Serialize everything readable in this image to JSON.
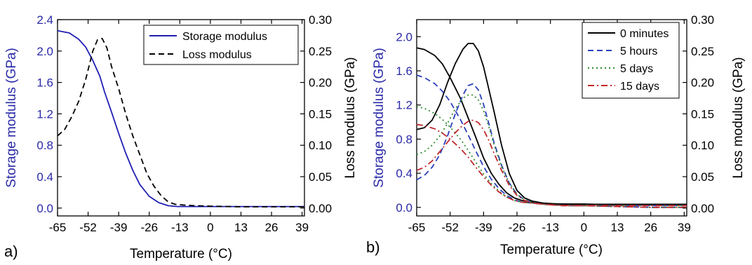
{
  "chart_data": [
    {
      "type": "line",
      "panel_label": "a)",
      "xlabel": "Temperature (°C)",
      "ylabel": "Storage modulus (GPa)",
      "ylabel_right": "Loss modulus (GPa)",
      "xlim": [
        -65,
        40
      ],
      "ylim": [
        -0.1,
        2.4
      ],
      "ylim_right": [
        -0.0125,
        0.3
      ],
      "xticks": [
        "-65",
        "-52",
        "-39",
        "-26",
        "-13",
        "0",
        "13",
        "26",
        "39"
      ],
      "yticks": [
        "0.0",
        "0.4",
        "0.8",
        "1.2",
        "1.6",
        "2.0",
        "2.4"
      ],
      "yticks_right": [
        "0.00",
        "0.05",
        "0.10",
        "0.15",
        "0.20",
        "0.25",
        "0.30"
      ],
      "legend_position": "top-right",
      "series": [
        {
          "name": "Storage modulus",
          "axis": "left",
          "color": "#1f1fb4",
          "style": "solid",
          "x": [
            -65,
            -60,
            -56,
            -53,
            -50,
            -47,
            -45,
            -42,
            -39,
            -36,
            -33,
            -30,
            -26,
            -22,
            -18,
            -14,
            -10,
            0,
            13,
            26,
            40
          ],
          "y": [
            2.26,
            2.23,
            2.15,
            2.05,
            1.88,
            1.68,
            1.48,
            1.22,
            0.95,
            0.7,
            0.48,
            0.3,
            0.15,
            0.07,
            0.03,
            0.02,
            0.02,
            0.02,
            0.02,
            0.02,
            0.02
          ]
        },
        {
          "name": "Loss modulus",
          "axis": "right",
          "color": "#000000",
          "style": "dashed",
          "x": [
            -65,
            -62,
            -59,
            -56,
            -53,
            -50,
            -48,
            -46,
            -44,
            -42,
            -39,
            -36,
            -33,
            -30,
            -27,
            -24,
            -21,
            -18,
            -15,
            -12,
            -8,
            0,
            13,
            26,
            40
          ],
          "y": [
            0.115,
            0.125,
            0.145,
            0.17,
            0.205,
            0.25,
            0.268,
            0.27,
            0.255,
            0.225,
            0.19,
            0.15,
            0.115,
            0.085,
            0.055,
            0.035,
            0.02,
            0.01,
            0.006,
            0.005,
            0.004,
            0.003,
            0.002,
            0.002,
            0.002
          ]
        }
      ]
    },
    {
      "type": "line",
      "panel_label": "b)",
      "xlabel": "Temperature (°C)",
      "ylabel": "Storage modulus (GPa)",
      "ylabel_right": "Loss modulus (GPa)",
      "xlim": [
        -65,
        40
      ],
      "ylim": [
        -0.1,
        2.2
      ],
      "ylim_right": [
        -0.0125,
        0.3
      ],
      "xticks": [
        "-65",
        "-52",
        "-39",
        "-26",
        "-13",
        "0",
        "13",
        "26",
        "39"
      ],
      "yticks": [
        "0.0",
        "0.4",
        "0.8",
        "1.2",
        "1.6",
        "2.0"
      ],
      "yticks_right": [
        "0.00",
        "0.05",
        "0.10",
        "0.15",
        "0.20",
        "0.25",
        "0.30"
      ],
      "legend_position": "top-right",
      "series": [
        {
          "name": "0 minutes",
          "color": "#000000",
          "style": "solid",
          "storage": {
            "x": [
              -65,
              -62,
              -58,
              -55,
              -52,
              -48,
              -45,
              -42,
              -39,
              -36,
              -33,
              -30,
              -27,
              -24,
              -20,
              -16,
              -12,
              -8,
              0,
              13,
              26,
              40
            ],
            "y": [
              1.87,
              1.85,
              1.78,
              1.68,
              1.52,
              1.28,
              1.05,
              0.82,
              0.58,
              0.4,
              0.27,
              0.17,
              0.11,
              0.08,
              0.06,
              0.05,
              0.04,
              0.04,
              0.04,
              0.03,
              0.03,
              0.03
            ]
          },
          "loss": {
            "x": [
              -65,
              -62,
              -59,
              -56,
              -53,
              -50,
              -47,
              -45,
              -43,
              -41,
              -39,
              -37,
              -35,
              -32,
              -29,
              -26,
              -23,
              -20,
              -16,
              -12,
              -6,
              0,
              13,
              26,
              40
            ],
            "y": [
              0.125,
              0.128,
              0.14,
              0.165,
              0.2,
              0.23,
              0.253,
              0.262,
              0.262,
              0.25,
              0.225,
              0.19,
              0.155,
              0.1,
              0.055,
              0.028,
              0.016,
              0.011,
              0.008,
              0.007,
              0.006,
              0.006,
              0.006,
              0.006,
              0.006
            ]
          }
        },
        {
          "name": "5 hours",
          "color": "#2b3fb8",
          "style": "dashed",
          "storage": {
            "x": [
              -65,
              -62,
              -58,
              -55,
              -52,
              -48,
              -45,
              -42,
              -39,
              -36,
              -33,
              -30,
              -27,
              -24,
              -20,
              -16,
              -12,
              -8,
              0,
              13,
              26,
              40
            ],
            "y": [
              1.55,
              1.52,
              1.45,
              1.36,
              1.24,
              1.03,
              0.85,
              0.66,
              0.48,
              0.33,
              0.22,
              0.14,
              0.09,
              0.06,
              0.05,
              0.04,
              0.03,
              0.02,
              0.02,
              0.01,
              0.0,
              0.0
            ]
          },
          "loss": {
            "x": [
              -65,
              -62,
              -59,
              -56,
              -53,
              -50,
              -47,
              -45,
              -43,
              -41,
              -39,
              -37,
              -35,
              -32,
              -29,
              -26,
              -23,
              -20,
              -16,
              -12,
              -6,
              0,
              13,
              26,
              40
            ],
            "y": [
              0.045,
              0.052,
              0.065,
              0.085,
              0.115,
              0.15,
              0.18,
              0.195,
              0.198,
              0.188,
              0.165,
              0.135,
              0.105,
              0.068,
              0.04,
              0.022,
              0.013,
              0.009,
              0.006,
              0.005,
              0.004,
              0.004,
              0.004,
              0.004,
              0.004
            ]
          }
        },
        {
          "name": "5 days",
          "color": "#2e8b2e",
          "style": "dotted",
          "storage": {
            "x": [
              -65,
              -62,
              -58,
              -55,
              -52,
              -48,
              -45,
              -42,
              -39,
              -36,
              -33,
              -30,
              -27,
              -24,
              -20,
              -16,
              -12,
              -8,
              0,
              13,
              26,
              40
            ],
            "y": [
              1.18,
              1.16,
              1.1,
              1.03,
              0.94,
              0.8,
              0.67,
              0.53,
              0.39,
              0.28,
              0.19,
              0.12,
              0.08,
              0.06,
              0.05,
              0.04,
              0.03,
              0.02,
              0.02,
              0.01,
              0.0,
              0.0
            ]
          },
          "loss": {
            "x": [
              -65,
              -62,
              -59,
              -56,
              -53,
              -50,
              -47,
              -45,
              -43,
              -41,
              -39,
              -37,
              -35,
              -32,
              -29,
              -26,
              -23,
              -20,
              -16,
              -12,
              -6,
              0,
              13,
              26,
              40
            ],
            "y": [
              0.085,
              0.09,
              0.1,
              0.115,
              0.135,
              0.158,
              0.175,
              0.18,
              0.18,
              0.172,
              0.155,
              0.13,
              0.102,
              0.066,
              0.04,
              0.022,
              0.013,
              0.009,
              0.006,
              0.005,
              0.004,
              0.004,
              0.004,
              0.004,
              0.004
            ]
          }
        },
        {
          "name": "15 days",
          "color": "#c0282d",
          "style": "dashdot",
          "storage": {
            "x": [
              -65,
              -62,
              -58,
              -55,
              -52,
              -48,
              -45,
              -42,
              -39,
              -36,
              -33,
              -30,
              -27,
              -24,
              -20,
              -16,
              -12,
              -8,
              0,
              13,
              26,
              40
            ],
            "y": [
              0.97,
              0.96,
              0.92,
              0.87,
              0.8,
              0.69,
              0.59,
              0.47,
              0.36,
              0.26,
              0.18,
              0.12,
              0.08,
              0.06,
              0.05,
              0.04,
              0.03,
              0.02,
              0.02,
              0.01,
              0.0,
              0.0
            ]
          },
          "loss": {
            "x": [
              -65,
              -62,
              -59,
              -56,
              -53,
              -50,
              -47,
              -45,
              -43,
              -41,
              -39,
              -37,
              -35,
              -32,
              -29,
              -26,
              -23,
              -20,
              -16,
              -12,
              -6,
              0,
              13,
              26,
              40
            ],
            "y": [
              0.06,
              0.065,
              0.075,
              0.09,
              0.105,
              0.12,
              0.132,
              0.138,
              0.14,
              0.136,
              0.125,
              0.108,
              0.088,
              0.06,
              0.036,
              0.02,
              0.012,
              0.008,
              0.006,
              0.005,
              0.004,
              0.004,
              0.004,
              0.004,
              0.004
            ]
          }
        }
      ]
    }
  ]
}
